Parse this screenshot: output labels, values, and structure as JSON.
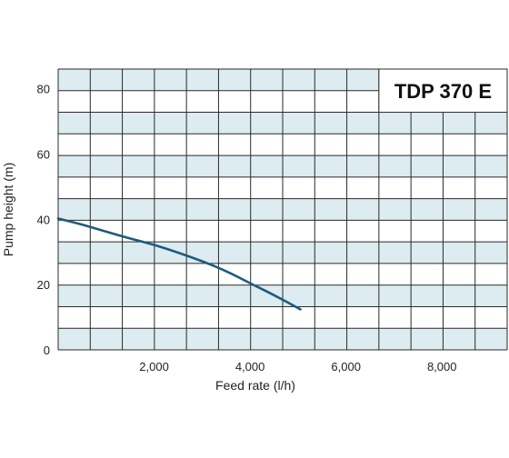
{
  "chart_data": {
    "type": "line",
    "title": "TDP 370 E",
    "xlabel": "Feed rate (l/h)",
    "ylabel": "Pump height (m)",
    "xlim": [
      0,
      9360
    ],
    "ylim": [
      0,
      86
    ],
    "x_ticks": [
      {
        "value": 2000,
        "label": "2,000"
      },
      {
        "value": 4000,
        "label": "4,000"
      },
      {
        "value": 6000,
        "label": "6,000"
      },
      {
        "value": 8000,
        "label": "8,000"
      }
    ],
    "y_ticks": [
      {
        "value": 0,
        "label": "0"
      },
      {
        "value": 20,
        "label": "20"
      },
      {
        "value": 40,
        "label": "40"
      },
      {
        "value": 60,
        "label": "60"
      },
      {
        "value": 80,
        "label": "80"
      }
    ],
    "grid": true,
    "series": [
      {
        "color": "#1e5b7c",
        "points": [
          [
            0,
            40.2
          ],
          [
            500,
            38.4
          ],
          [
            1000,
            36.2
          ],
          [
            1500,
            34.1
          ],
          [
            2000,
            32.2
          ],
          [
            2500,
            29.8
          ],
          [
            3000,
            27.2
          ],
          [
            3500,
            24.2
          ],
          [
            4000,
            20.4
          ],
          [
            4500,
            16.8
          ],
          [
            5050,
            12.4
          ]
        ]
      }
    ],
    "colors": {
      "band_fill": "#dcecf0",
      "grid_line": "#2a2a2a",
      "curve": "#1e5b7c"
    }
  }
}
